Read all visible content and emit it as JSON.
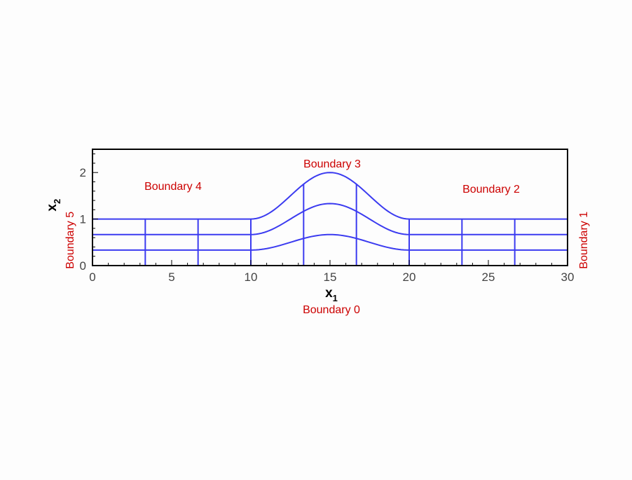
{
  "colors": {
    "mesh": "#3b3bf0",
    "boundary_text": "#cc0000",
    "frame": "#000000",
    "background": "#fdfdfd"
  },
  "axes": {
    "xlabel": {
      "main": "x",
      "sub": "1"
    },
    "ylabel": {
      "main": "x",
      "sub": "2"
    },
    "xlim": [
      0,
      30
    ],
    "ylim": [
      0,
      2.5
    ],
    "xticks": [
      0,
      5,
      10,
      15,
      20,
      25,
      30
    ],
    "yticks": [
      0,
      1,
      2
    ],
    "x_minor_step": 1,
    "y_minor_step": 0.2
  },
  "boundaries": {
    "b0": "Boundary 0",
    "b1": "Boundary 1",
    "b2": "Boundary 2",
    "b3": "Boundary 3",
    "b4": "Boundary 4",
    "b5": "Boundary 5"
  },
  "mesh": {
    "layers": [
      0.3333,
      0.6667,
      1.0
    ],
    "bump": {
      "x_start": 10,
      "x_end": 20,
      "height": 1.0,
      "shape": "cosine"
    },
    "left_verticals": [
      3.333,
      6.667,
      10
    ],
    "middle_verticals": [
      13.333,
      16.667
    ],
    "right_verticals": [
      20,
      23.333,
      26.667
    ]
  }
}
